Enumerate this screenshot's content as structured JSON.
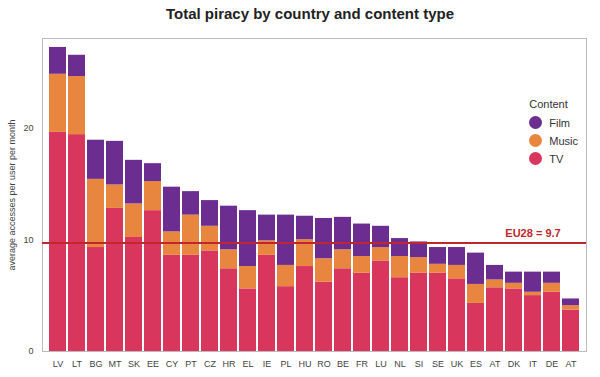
{
  "chart_data": {
    "type": "bar",
    "title": "Total piracy by country and content type",
    "y_label": "average accesses per user per month",
    "legend_title": "Content",
    "legend": "top-right",
    "stacked": true,
    "grid": false,
    "categories": [
      "LV",
      "LT",
      "BG",
      "MT",
      "SK",
      "EE",
      "CY",
      "PT",
      "CZ",
      "HR",
      "EL",
      "IE",
      "PL",
      "HU",
      "RO",
      "BE",
      "FR",
      "LU",
      "NL",
      "SI",
      "SE",
      "UK",
      "ES",
      "AT",
      "DK",
      "IT",
      "DE",
      "AT"
    ],
    "series": [
      {
        "name": "Film",
        "color": "#6b2d8f",
        "values": [
          2.4,
          1.9,
          3.5,
          3.9,
          3.9,
          1.6,
          4.0,
          2.1,
          2.3,
          3.9,
          5.0,
          2.3,
          4.5,
          2.1,
          3.6,
          2.9,
          2.9,
          1.9,
          1.6,
          1.4,
          1.5,
          1.6,
          2.8,
          1.3,
          1.0,
          1.8,
          1.0,
          0.6
        ]
      },
      {
        "name": "Music",
        "color": "#e8853f",
        "values": [
          5.2,
          5.2,
          6.1,
          2.1,
          3.0,
          2.6,
          2.1,
          3.6,
          2.2,
          1.7,
          2.0,
          1.3,
          1.9,
          2.4,
          2.1,
          1.7,
          1.5,
          1.2,
          1.9,
          1.4,
          0.8,
          1.2,
          1.7,
          0.7,
          0.5,
          0.3,
          0.8,
          0.4
        ]
      },
      {
        "name": "TV",
        "color": "#d9365e",
        "values": [
          19.6,
          19.4,
          9.3,
          12.8,
          10.2,
          12.6,
          8.6,
          8.6,
          9.0,
          7.4,
          5.6,
          8.6,
          5.8,
          7.6,
          6.2,
          7.4,
          7.0,
          8.1,
          6.6,
          7.0,
          7.0,
          6.5,
          4.3,
          5.7,
          5.6,
          5.0,
          5.3,
          3.7
        ]
      }
    ],
    "ylim": [
      0,
      28
    ],
    "yticks": [
      0,
      10,
      20
    ],
    "reference_line": {
      "value": 9.7,
      "label": "EU28 = 9.7",
      "color": "#c0262c"
    }
  }
}
